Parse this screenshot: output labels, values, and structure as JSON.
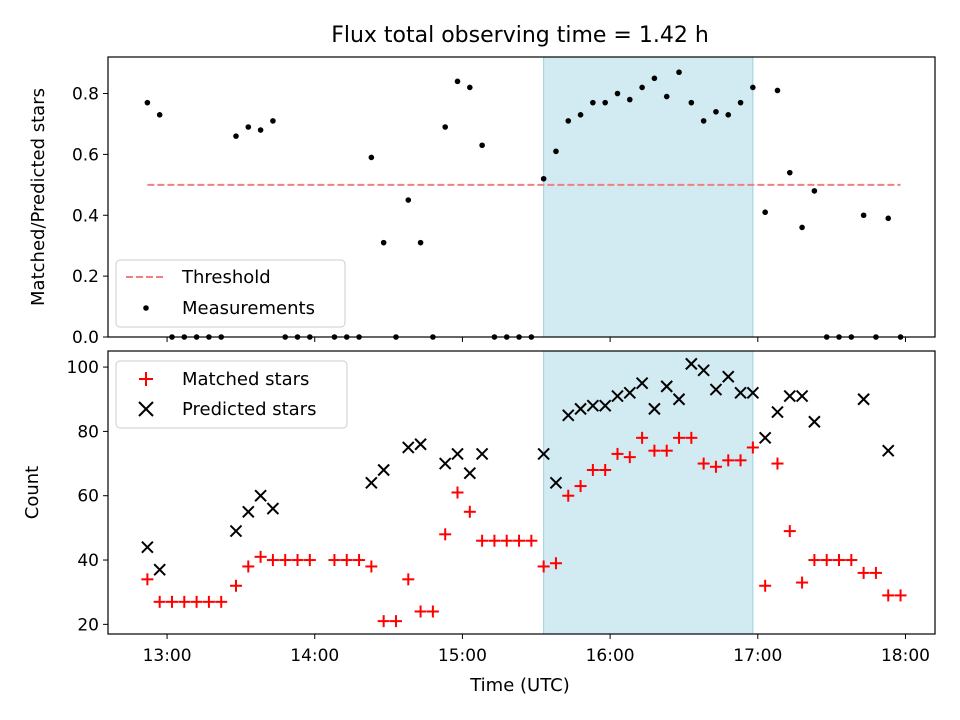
{
  "chart_data": [
    {
      "type": "scatter",
      "title": "Flux total observing time = 1.42 h",
      "ylabel": "Matched/Predicted stars",
      "xlim": [
        "12:36",
        "18:12"
      ],
      "ylim": [
        0,
        0.92
      ],
      "yticks": [
        0.0,
        0.2,
        0.4,
        0.6,
        0.8
      ],
      "ytick_labels": [
        "0.0",
        "0.2",
        "0.4",
        "0.6",
        "0.8"
      ],
      "highlight_span": [
        "15:33",
        "16:58"
      ],
      "highlight_color": "#add8e6",
      "threshold": {
        "name": "Threshold",
        "value": 0.5,
        "x_range": [
          "12:52",
          "17:58"
        ],
        "color": "#f08080",
        "style": "dashed"
      },
      "legend": {
        "position": "lower-left",
        "entries": [
          "Threshold",
          "Measurements"
        ]
      },
      "series": [
        {
          "name": "Measurements",
          "marker": "dot",
          "color": "#000000",
          "points": [
            [
              "12:52",
              0.77
            ],
            [
              "12:57",
              0.73
            ],
            [
              "13:02",
              0.0
            ],
            [
              "13:07",
              0.0
            ],
            [
              "13:12",
              0.0
            ],
            [
              "13:17",
              0.0
            ],
            [
              "13:22",
              0.0
            ],
            [
              "13:28",
              0.66
            ],
            [
              "13:33",
              0.69
            ],
            [
              "13:38",
              0.68
            ],
            [
              "13:43",
              0.71
            ],
            [
              "13:48",
              0.0
            ],
            [
              "13:53",
              0.0
            ],
            [
              "13:58",
              0.0
            ],
            [
              "14:08",
              0.0
            ],
            [
              "14:13",
              0.0
            ],
            [
              "14:18",
              0.0
            ],
            [
              "14:23",
              0.59
            ],
            [
              "14:28",
              0.31
            ],
            [
              "14:33",
              0.0
            ],
            [
              "14:38",
              0.45
            ],
            [
              "14:43",
              0.31
            ],
            [
              "14:48",
              0.0
            ],
            [
              "14:53",
              0.69
            ],
            [
              "14:58",
              0.84
            ],
            [
              "15:03",
              0.82
            ],
            [
              "15:08",
              0.63
            ],
            [
              "15:13",
              0.0
            ],
            [
              "15:18",
              0.0
            ],
            [
              "15:23",
              0.0
            ],
            [
              "15:28",
              0.0
            ],
            [
              "15:33",
              0.52
            ],
            [
              "15:38",
              0.61
            ],
            [
              "15:43",
              0.71
            ],
            [
              "15:48",
              0.73
            ],
            [
              "15:53",
              0.77
            ],
            [
              "15:58",
              0.77
            ],
            [
              "16:03",
              0.8
            ],
            [
              "16:08",
              0.78
            ],
            [
              "16:13",
              0.82
            ],
            [
              "16:18",
              0.85
            ],
            [
              "16:23",
              0.79
            ],
            [
              "16:28",
              0.87
            ],
            [
              "16:33",
              0.77
            ],
            [
              "16:38",
              0.71
            ],
            [
              "16:43",
              0.74
            ],
            [
              "16:48",
              0.73
            ],
            [
              "16:53",
              0.77
            ],
            [
              "16:58",
              0.82
            ],
            [
              "17:03",
              0.41
            ],
            [
              "17:08",
              0.81
            ],
            [
              "17:13",
              0.54
            ],
            [
              "17:18",
              0.36
            ],
            [
              "17:23",
              0.48
            ],
            [
              "17:28",
              0.0
            ],
            [
              "17:33",
              0.0
            ],
            [
              "17:38",
              0.0
            ],
            [
              "17:43",
              0.4
            ],
            [
              "17:48",
              0.0
            ],
            [
              "17:53",
              0.39
            ],
            [
              "17:58",
              0.0
            ]
          ]
        }
      ]
    },
    {
      "type": "scatter",
      "xlabel": "Time (UTC)",
      "ylabel": "Count",
      "xlim": [
        "12:36",
        "18:12"
      ],
      "ylim": [
        17,
        105
      ],
      "xticks": [
        "13:00",
        "14:00",
        "15:00",
        "16:00",
        "17:00",
        "18:00"
      ],
      "yticks": [
        20,
        40,
        60,
        80,
        100
      ],
      "highlight_span": [
        "15:33",
        "16:58"
      ],
      "legend": {
        "position": "upper-left",
        "entries": [
          "Matched stars",
          "Predicted stars"
        ]
      },
      "series": [
        {
          "name": "Matched stars",
          "marker": "plus",
          "color": "#ff0000",
          "points": [
            [
              "12:52",
              34
            ],
            [
              "12:57",
              27
            ],
            [
              "13:02",
              27
            ],
            [
              "13:07",
              27
            ],
            [
              "13:12",
              27
            ],
            [
              "13:17",
              27
            ],
            [
              "13:22",
              27
            ],
            [
              "13:28",
              32
            ],
            [
              "13:33",
              38
            ],
            [
              "13:38",
              41
            ],
            [
              "13:43",
              40
            ],
            [
              "13:48",
              40
            ],
            [
              "13:53",
              40
            ],
            [
              "13:58",
              40
            ],
            [
              "14:08",
              40
            ],
            [
              "14:13",
              40
            ],
            [
              "14:18",
              40
            ],
            [
              "14:23",
              38
            ],
            [
              "14:28",
              21
            ],
            [
              "14:33",
              21
            ],
            [
              "14:38",
              34
            ],
            [
              "14:43",
              24
            ],
            [
              "14:48",
              24
            ],
            [
              "14:53",
              48
            ],
            [
              "14:58",
              61
            ],
            [
              "15:03",
              55
            ],
            [
              "15:08",
              46
            ],
            [
              "15:13",
              46
            ],
            [
              "15:18",
              46
            ],
            [
              "15:23",
              46
            ],
            [
              "15:28",
              46
            ],
            [
              "15:33",
              38
            ],
            [
              "15:38",
              39
            ],
            [
              "15:43",
              60
            ],
            [
              "15:48",
              63
            ],
            [
              "15:53",
              68
            ],
            [
              "15:58",
              68
            ],
            [
              "16:03",
              73
            ],
            [
              "16:08",
              72
            ],
            [
              "16:13",
              78
            ],
            [
              "16:18",
              74
            ],
            [
              "16:23",
              74
            ],
            [
              "16:28",
              78
            ],
            [
              "16:33",
              78
            ],
            [
              "16:38",
              70
            ],
            [
              "16:43",
              69
            ],
            [
              "16:48",
              71
            ],
            [
              "16:53",
              71
            ],
            [
              "16:58",
              75
            ],
            [
              "17:03",
              32
            ],
            [
              "17:08",
              70
            ],
            [
              "17:13",
              49
            ],
            [
              "17:18",
              33
            ],
            [
              "17:23",
              40
            ],
            [
              "17:28",
              40
            ],
            [
              "17:33",
              40
            ],
            [
              "17:38",
              40
            ],
            [
              "17:43",
              36
            ],
            [
              "17:48",
              36
            ],
            [
              "17:53",
              29
            ],
            [
              "17:58",
              29
            ]
          ]
        },
        {
          "name": "Predicted stars",
          "marker": "x",
          "color": "#000000",
          "points": [
            [
              "12:52",
              44
            ],
            [
              "12:57",
              37
            ],
            [
              "13:28",
              49
            ],
            [
              "13:33",
              55
            ],
            [
              "13:38",
              60
            ],
            [
              "13:43",
              56
            ],
            [
              "14:23",
              64
            ],
            [
              "14:28",
              68
            ],
            [
              "14:38",
              75
            ],
            [
              "14:43",
              76
            ],
            [
              "14:53",
              70
            ],
            [
              "14:58",
              73
            ],
            [
              "15:03",
              67
            ],
            [
              "15:08",
              73
            ],
            [
              "15:33",
              73
            ],
            [
              "15:38",
              64
            ],
            [
              "15:43",
              85
            ],
            [
              "15:48",
              87
            ],
            [
              "15:53",
              88
            ],
            [
              "15:58",
              88
            ],
            [
              "16:03",
              91
            ],
            [
              "16:08",
              92
            ],
            [
              "16:13",
              95
            ],
            [
              "16:18",
              87
            ],
            [
              "16:23",
              94
            ],
            [
              "16:28",
              90
            ],
            [
              "16:33",
              101
            ],
            [
              "16:38",
              99
            ],
            [
              "16:43",
              93
            ],
            [
              "16:48",
              97
            ],
            [
              "16:53",
              92
            ],
            [
              "16:58",
              92
            ],
            [
              "17:03",
              78
            ],
            [
              "17:08",
              86
            ],
            [
              "17:13",
              91
            ],
            [
              "17:18",
              91
            ],
            [
              "17:23",
              83
            ],
            [
              "17:43",
              90
            ],
            [
              "17:53",
              74
            ]
          ]
        }
      ]
    }
  ]
}
